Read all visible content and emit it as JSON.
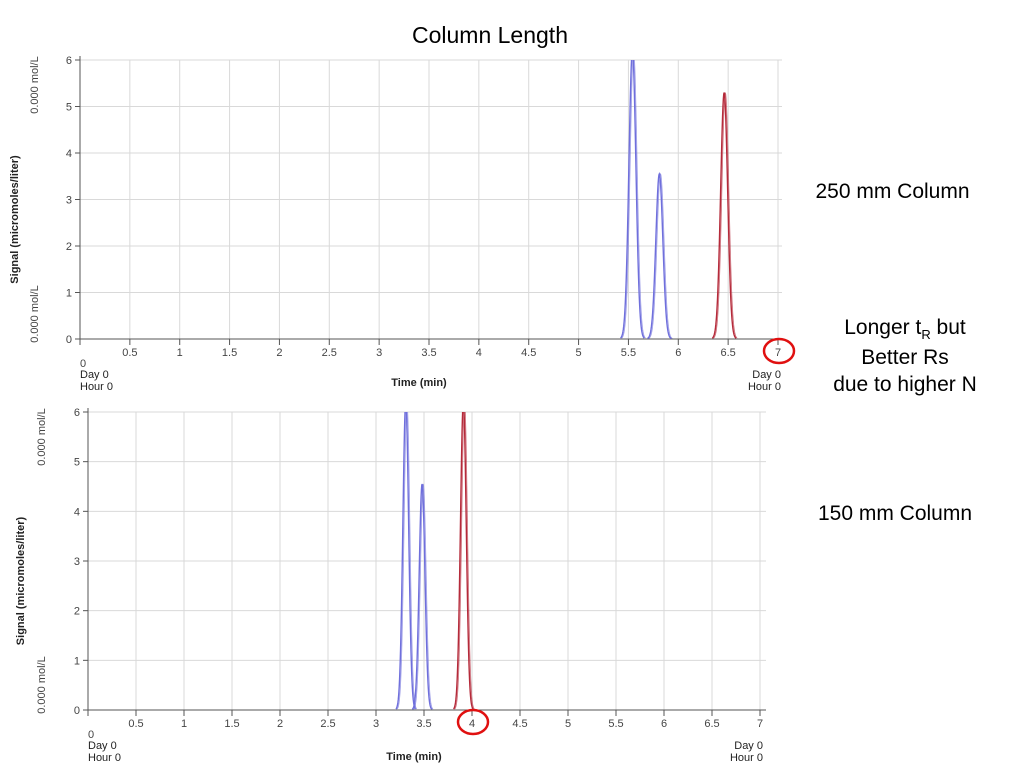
{
  "slide": {
    "title": "Column Length",
    "label_top": "250 mm Column",
    "note_part1": "Longer t",
    "note_sub": "R",
    "note_part2": " but",
    "note_line2": "Better Rs",
    "note_line3": "due to higher N",
    "label_bottom": "150 mm Column"
  },
  "colors": {
    "blue_trace": "#6f6fdc",
    "red_trace": "#b52a3a",
    "highlight_circle": "#e01010",
    "grid": "#d9d9d9"
  },
  "chart_data": [
    {
      "type": "line",
      "name": "top-chromatogram",
      "xlabel": "Time (min)",
      "ylabel": "Signal (micromoles/liter)",
      "ylim": [
        0,
        6
      ],
      "xlim": [
        0,
        7
      ],
      "x_tick_labels": [
        "0",
        "0.5",
        "1",
        "1.5",
        "2",
        "2.5",
        "3",
        "3.5",
        "4",
        "4.5",
        "5",
        "5.5",
        "6",
        "6.5",
        "7"
      ],
      "y_tick_labels": [
        "0",
        "1",
        "2",
        "3",
        "4",
        "5",
        "6"
      ],
      "y_unit_top": "0.000 mol/L",
      "y_unit_bottom": "0.000 mol/L",
      "x_start_day": "Day 0",
      "x_start_hour": "Hour 0",
      "x_end_day": "Day 0",
      "x_end_hour": "Hour 0",
      "highlighted_tick": "7",
      "grid": true,
      "peaks": [
        {
          "color": "blue",
          "center": 5.54,
          "height": 6.2,
          "width": 0.035
        },
        {
          "color": "blue",
          "center": 5.81,
          "height": 3.55,
          "width": 0.035
        },
        {
          "color": "red",
          "center": 6.46,
          "height": 5.3,
          "width": 0.035
        }
      ]
    },
    {
      "type": "line",
      "name": "bottom-chromatogram",
      "xlabel": "Time (min)",
      "ylabel": "Signal (micromoles/liter)",
      "ylim": [
        0,
        6
      ],
      "xlim": [
        0,
        7
      ],
      "x_tick_labels": [
        "0",
        "0.5",
        "1",
        "1.5",
        "2",
        "2.5",
        "3",
        "3.5",
        "4",
        "4.5",
        "5",
        "5.5",
        "6",
        "6.5",
        "7"
      ],
      "y_tick_labels": [
        "0",
        "1",
        "2",
        "3",
        "4",
        "5",
        "6"
      ],
      "y_unit_top": "0.000 mol/L",
      "y_unit_bottom": "0.000 mol/L",
      "x_start_day": "Day 0",
      "x_start_hour": "Hour 0",
      "x_end_day": "Day 0",
      "x_end_hour": "Hour 0",
      "highlighted_tick": "4",
      "grid": true,
      "peaks": [
        {
          "color": "blue",
          "center": 3.31,
          "height": 6.2,
          "width": 0.03
        },
        {
          "color": "blue",
          "center": 3.48,
          "height": 4.55,
          "width": 0.03
        },
        {
          "color": "red",
          "center": 3.91,
          "height": 6.2,
          "width": 0.03
        }
      ]
    }
  ]
}
